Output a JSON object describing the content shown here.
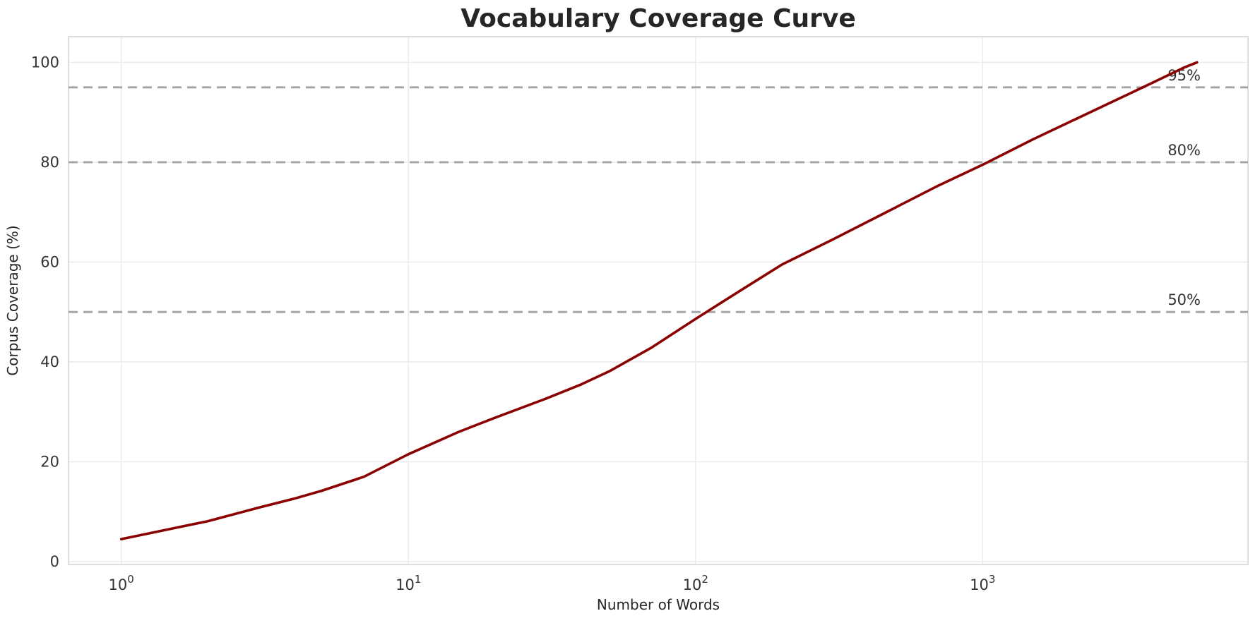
{
  "chart_data": {
    "type": "line",
    "title": "Vocabulary Coverage Curve",
    "xlabel": "Number of Words",
    "ylabel": "Corpus Coverage (%)",
    "x_scale": "log",
    "grid": true,
    "legend": "none",
    "xlim": [
      0.655,
      8400
    ],
    "ylim": [
      -0.57,
      105.15
    ],
    "x_ticks": [
      {
        "base": "10",
        "exp": "0",
        "value": 1
      },
      {
        "base": "10",
        "exp": "1",
        "value": 10
      },
      {
        "base": "10",
        "exp": "2",
        "value": 100
      },
      {
        "base": "10",
        "exp": "3",
        "value": 1000
      }
    ],
    "y_ticks": [
      0,
      20,
      40,
      60,
      80,
      100
    ],
    "series": [
      {
        "name": "Corpus Coverage",
        "color": "#8B0000",
        "x": [
          1,
          2,
          3,
          4,
          5,
          7,
          10,
          15,
          20,
          30,
          40,
          50,
          70,
          100,
          150,
          200,
          300,
          500,
          700,
          1000,
          1500,
          2000,
          3000,
          4000,
          5000,
          5580
        ],
        "y": [
          4.5,
          8.1,
          10.8,
          12.6,
          14.2,
          17.0,
          21.5,
          26.0,
          28.8,
          32.6,
          35.5,
          38.1,
          42.8,
          48.6,
          55.0,
          59.5,
          64.5,
          71.0,
          75.3,
          79.5,
          84.6,
          88.0,
          92.8,
          96.2,
          98.9,
          100.0
        ]
      }
    ],
    "reference_lines": [
      {
        "value": 50,
        "label": "50%"
      },
      {
        "value": 80,
        "label": "80%"
      },
      {
        "value": 95,
        "label": "95%"
      }
    ],
    "colors": {
      "curve": "#8B0000",
      "reference_dash": "#a3a3a3",
      "grid": "#ececec",
      "plot_border": "#d5d5d5",
      "text": "#262626",
      "background": "#ffffff"
    }
  }
}
